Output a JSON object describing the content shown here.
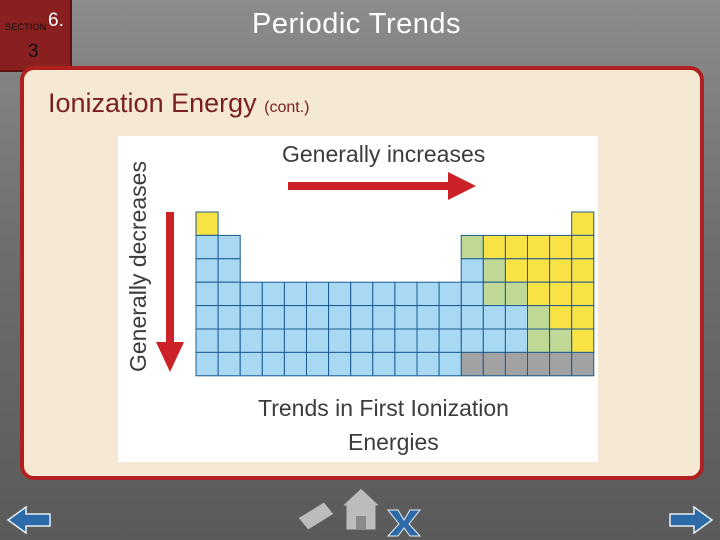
{
  "header": {
    "section_word": "SECTION",
    "section_num": "6.",
    "section_sub": "3",
    "title": "Periodic Trends"
  },
  "slide": {
    "heading": "Ionization Energy",
    "heading_suffix": "(cont.)"
  },
  "figure": {
    "across_label": "Generally increases",
    "down_label": "Generally decreases",
    "caption_line1": "Trends in First Ionization",
    "caption_line2": "Energies",
    "colors": {
      "blue": "#a9d8f3",
      "yellow": "#f9e244",
      "green": "#bfd896",
      "gray": "#a2a2a2",
      "arrow": "#cc2127",
      "grid": "#1b5b94"
    }
  },
  "nav": {
    "icons": [
      "left-arrow-icon",
      "home-icon",
      "exit-icon",
      "right-arrow-icon"
    ],
    "colors": {
      "blue": "#2d6aa8",
      "gray": "#bcbcbc"
    }
  }
}
